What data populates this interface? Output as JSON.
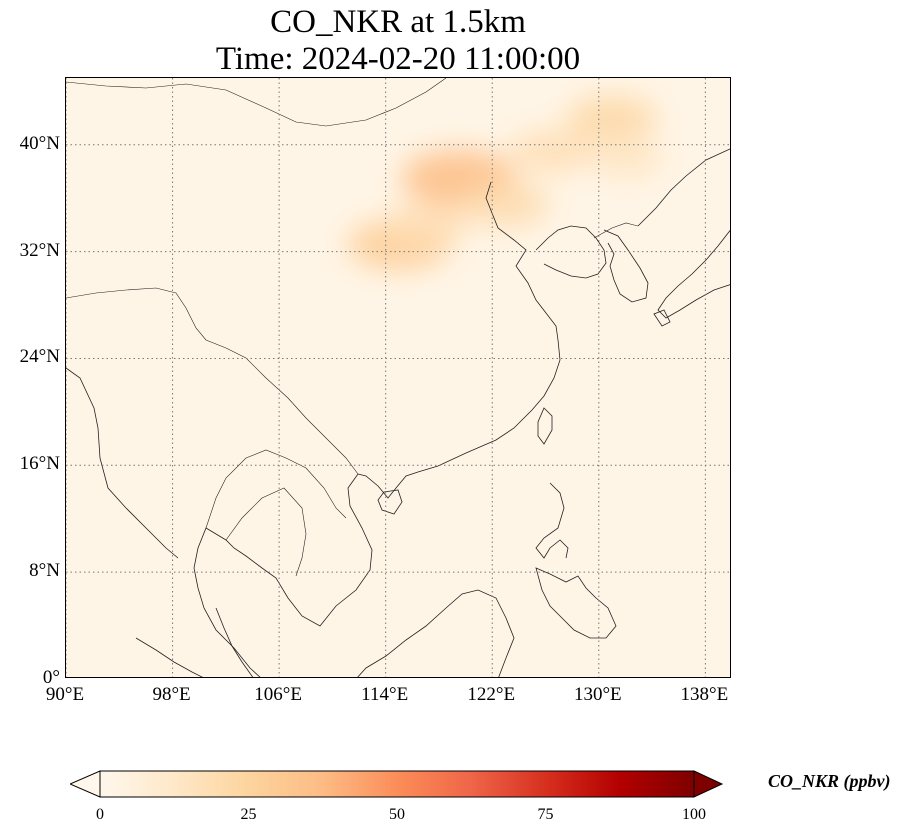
{
  "title": {
    "line1": "CO_NKR at 1.5km",
    "line2": "Time: 2024-02-20 11:00:00"
  },
  "map": {
    "extent": {
      "lon": [
        90,
        140
      ],
      "lat": [
        0,
        45
      ]
    },
    "gridlines": "dotted",
    "lon_ticks": [
      {
        "value": 90,
        "label": "90°E"
      },
      {
        "value": 98,
        "label": "98°E"
      },
      {
        "value": 106,
        "label": "106°E"
      },
      {
        "value": 114,
        "label": "114°E"
      },
      {
        "value": 122,
        "label": "122°E"
      },
      {
        "value": 130,
        "label": "130°E"
      },
      {
        "value": 138,
        "label": "138°E"
      }
    ],
    "lat_ticks": [
      {
        "value": 0,
        "label": "0°"
      },
      {
        "value": 8,
        "label": "8°N"
      },
      {
        "value": 16,
        "label": "16°N"
      },
      {
        "value": 24,
        "label": "24°N"
      },
      {
        "value": 32,
        "label": "32°N"
      },
      {
        "value": 40,
        "label": "40°N"
      }
    ],
    "background_ppbv": 2,
    "plumes": [
      {
        "region": "east-central-china",
        "lon": 115,
        "lat": 32.5,
        "peak_ppbv": 28
      },
      {
        "region": "north-china-plain",
        "lon": 117,
        "lat": 34,
        "peak_ppbv": 18
      },
      {
        "region": "bohai-coast",
        "lon": 119.5,
        "lat": 37.5,
        "peak_ppbv": 35
      },
      {
        "region": "yellow-sea-outflow",
        "lon": 123,
        "lat": 35.5,
        "peak_ppbv": 20
      },
      {
        "region": "northern-korea",
        "lon": 126.5,
        "lat": 39.5,
        "peak_ppbv": 18
      },
      {
        "region": "northeast-china",
        "lon": 131,
        "lat": 42,
        "peak_ppbv": 22
      },
      {
        "region": "sea-of-japan",
        "lon": 132,
        "lat": 39,
        "peak_ppbv": 14
      }
    ]
  },
  "colorbar": {
    "label": "CO_NKR (ppbv)",
    "min": 0,
    "max": 100,
    "extend": "both",
    "colormap": "OrRd",
    "stops": [
      "#fff7ec",
      "#fee8c8",
      "#fdd49e",
      "#fdbb84",
      "#fc8d59",
      "#ef6548",
      "#d7301f",
      "#b30000",
      "#7f0000"
    ],
    "ticks": [
      {
        "value": 0,
        "label": "0"
      },
      {
        "value": 25,
        "label": "25"
      },
      {
        "value": 50,
        "label": "50"
      },
      {
        "value": 75,
        "label": "75"
      },
      {
        "value": 100,
        "label": "100"
      }
    ]
  }
}
